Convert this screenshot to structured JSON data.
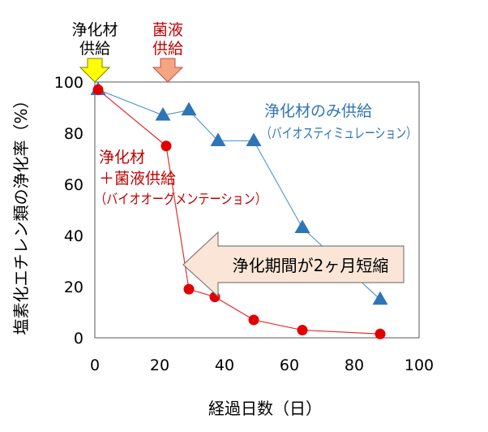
{
  "chart_data": {
    "type": "line",
    "title": "",
    "xlabel": "経過日数（日）",
    "ylabel": "塩素化エチレン類の浄化率（%）",
    "xlim": [
      0,
      100
    ],
    "ylim": [
      0,
      100
    ],
    "x_ticks": [
      "0",
      "20",
      "40",
      "60",
      "80",
      "100"
    ],
    "y_ticks": [
      "0",
      "20",
      "40",
      "60",
      "80",
      "100"
    ],
    "grid": false,
    "series": [
      {
        "name": "浄化材のみ供給",
        "name_sub": "（バイオスティミュレーション）",
        "color": "#2e75b6",
        "line_color": "#5b9bd5",
        "marker": "triangle",
        "points": [
          [
            1,
            97
          ],
          [
            21,
            87
          ],
          [
            29,
            89
          ],
          [
            38,
            77
          ],
          [
            49,
            77
          ],
          [
            64,
            43
          ],
          [
            88,
            15
          ]
        ]
      },
      {
        "name": "浄化材＋菌液供給",
        "name_lines": [
          "浄化材",
          "＋菌液供給",
          "（バイオオーグメンテーション）"
        ],
        "color": "#c00000",
        "line_color": "#e03030",
        "marker": "circle",
        "points": [
          [
            1,
            97
          ],
          [
            22,
            75
          ],
          [
            29,
            19
          ],
          [
            37,
            16
          ],
          [
            49,
            7
          ],
          [
            64,
            3
          ],
          [
            88,
            1.5
          ]
        ]
      }
    ],
    "annotations": {
      "supply_markers": [
        {
          "lines": [
            "浄化材",
            "供給"
          ],
          "text_color": "#000000",
          "arrow_fill": "#ffff00",
          "arrow_stroke": "#7f7f00",
          "x_day": 1
        },
        {
          "lines": [
            "菌液",
            "供給"
          ],
          "text_color": "#c00000",
          "arrow_fill": "#f4a582",
          "arrow_stroke": "#c0504d",
          "x_day": 22
        }
      ],
      "callout": {
        "text": "浄化期間が2ヶ月短縮",
        "fill": "#fbe5d6",
        "stroke": "#7f7f7f"
      }
    }
  }
}
